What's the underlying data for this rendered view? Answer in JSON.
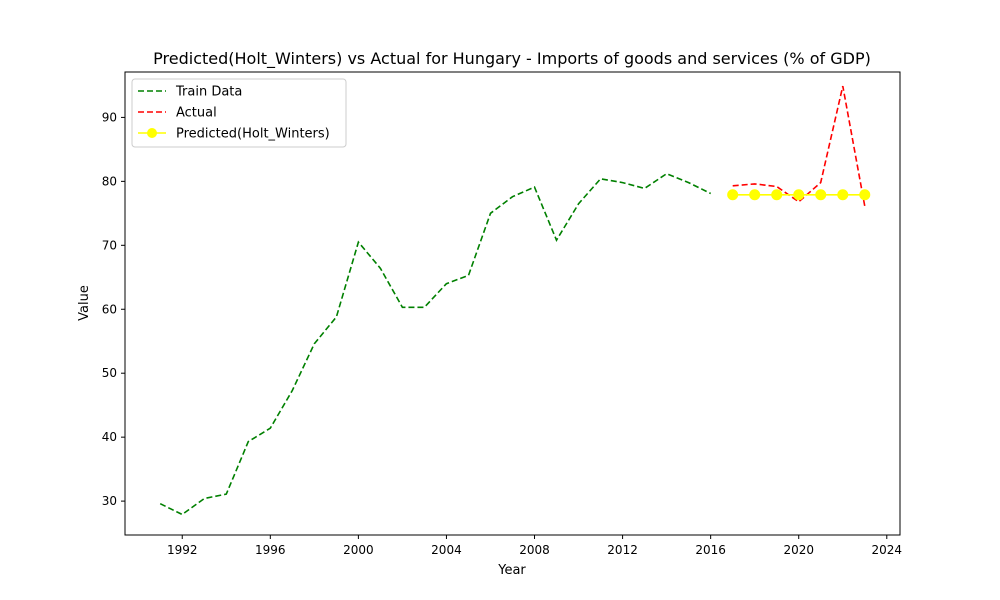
{
  "chart_data": {
    "type": "line",
    "title": "Predicted(Holt_Winters) vs Actual for Hungary - Imports of goods and services (% of GDP)",
    "xlabel": "Year",
    "ylabel": "Value",
    "xlim": [
      1989.4,
      2024.6
    ],
    "ylim": [
      24.7,
      97.1
    ],
    "x_ticks": [
      1992,
      1996,
      2000,
      2004,
      2008,
      2012,
      2016,
      2020,
      2024
    ],
    "y_ticks": [
      30,
      40,
      50,
      60,
      70,
      80,
      90
    ],
    "grid": false,
    "legend_position": "top-left",
    "series": [
      {
        "name": "Train Data",
        "color": "#008000",
        "style": "dashed",
        "marker": "none",
        "x": [
          1991,
          1992,
          1993,
          1994,
          1995,
          1996,
          1997,
          1998,
          1999,
          2000,
          2001,
          2002,
          2003,
          2004,
          2005,
          2006,
          2007,
          2008,
          2009,
          2010,
          2011,
          2012,
          2013,
          2014,
          2015,
          2016
        ],
        "values": [
          29.6,
          27.9,
          30.4,
          31.1,
          39.3,
          41.4,
          47.3,
          54.6,
          58.8,
          70.5,
          66.4,
          60.3,
          60.3,
          64.0,
          65.3,
          75.0,
          77.6,
          79.1,
          70.8,
          76.5,
          80.4,
          79.8,
          78.9,
          81.2,
          79.8,
          78.1
        ]
      },
      {
        "name": "Actual",
        "color": "#ff0000",
        "style": "dashed",
        "marker": "none",
        "x": [
          2017,
          2018,
          2019,
          2020,
          2021,
          2022,
          2023
        ],
        "values": [
          79.3,
          79.6,
          79.2,
          76.8,
          79.8,
          94.9,
          76.1
        ]
      },
      {
        "name": "Predicted(Holt_Winters)",
        "color": "#ffff00",
        "style": "solid",
        "marker": "circle",
        "x": [
          2017,
          2018,
          2019,
          2020,
          2021,
          2022,
          2023
        ],
        "values": [
          77.9,
          77.9,
          77.9,
          77.9,
          77.9,
          77.9,
          77.9
        ]
      }
    ]
  }
}
